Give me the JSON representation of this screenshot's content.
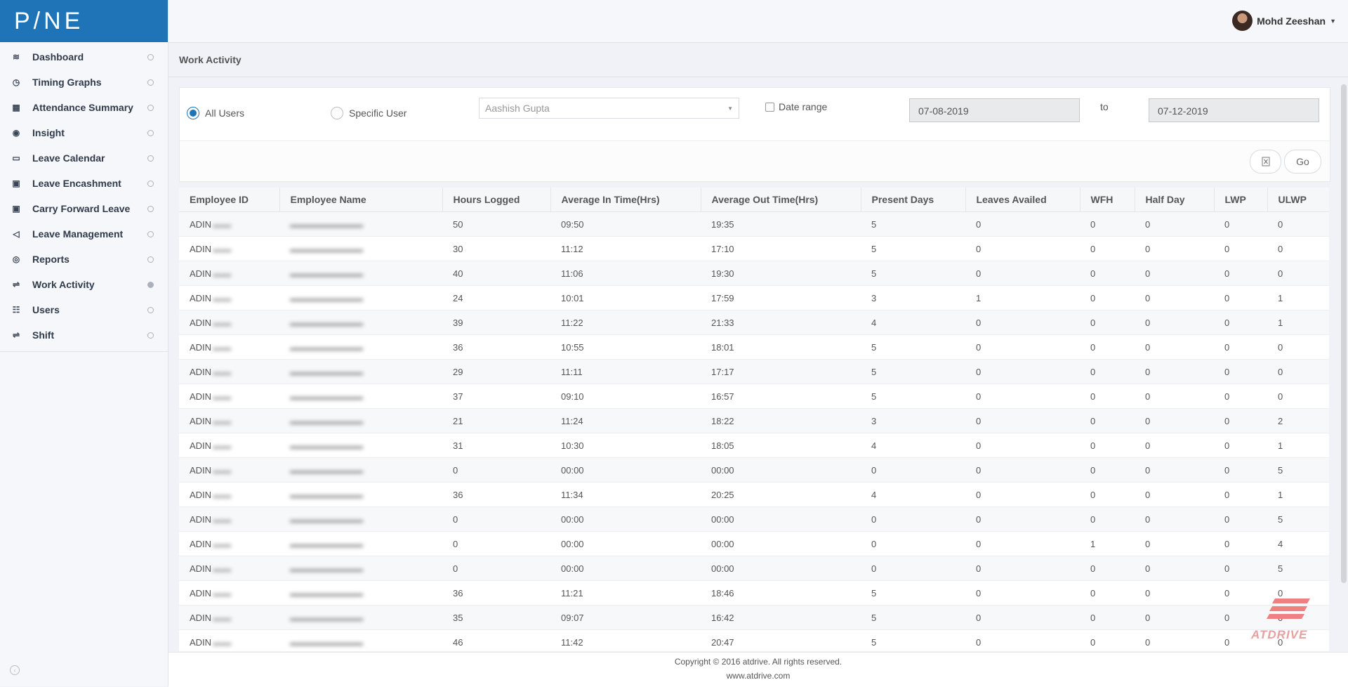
{
  "brand": {
    "logo_text": "P/NE"
  },
  "user": {
    "name": "Mohd Zeeshan"
  },
  "sidebar": {
    "items": [
      {
        "label": "Dashboard",
        "icon": "layers-icon",
        "glyph": "≋",
        "active": false
      },
      {
        "label": "Timing Graphs",
        "icon": "clock-icon",
        "glyph": "◷",
        "active": false
      },
      {
        "label": "Attendance Summary",
        "icon": "calendar-grid-icon",
        "glyph": "▦",
        "active": false
      },
      {
        "label": "Insight",
        "icon": "eye-icon",
        "glyph": "◉",
        "active": false
      },
      {
        "label": "Leave Calendar",
        "icon": "calendar-icon",
        "glyph": "▭",
        "active": false
      },
      {
        "label": "Leave Encashment",
        "icon": "money-icon",
        "glyph": "▣",
        "active": false
      },
      {
        "label": "Carry Forward Leave",
        "icon": "money-icon",
        "glyph": "▣",
        "active": false
      },
      {
        "label": "Leave Management",
        "icon": "paper-plane-icon",
        "glyph": "◁",
        "active": false
      },
      {
        "label": "Reports",
        "icon": "reports-icon",
        "glyph": "◎",
        "active": false
      },
      {
        "label": "Work Activity",
        "icon": "sliders-icon",
        "glyph": "⇌",
        "active": true
      },
      {
        "label": "Users",
        "icon": "users-icon",
        "glyph": "☷",
        "active": false
      },
      {
        "label": "Shift",
        "icon": "sliders-icon",
        "glyph": "⇌",
        "active": false
      }
    ]
  },
  "page": {
    "title": "Work Activity"
  },
  "filters": {
    "all_users_label": "All Users",
    "specific_user_label": "Specific User",
    "selected_scope": "All Users",
    "user_select_value": "Aashish Gupta",
    "date_range_label": "Date range",
    "date_range_checked": false,
    "from_date": "07-08-2019",
    "to_label": "to",
    "to_date": "07-12-2019",
    "export_icon": "excel-icon",
    "go_label": "Go"
  },
  "table": {
    "headers": [
      "Employee ID",
      "Employee Name",
      "Hours Logged",
      "Average In Time(Hrs)",
      "Average Out Time(Hrs)",
      "Present Days",
      "Leaves Availed",
      "WFH",
      "Half Day",
      "LWP",
      "ULWP"
    ],
    "rows": [
      [
        "ADIN",
        "",
        "50",
        "09:50",
        "19:35",
        "5",
        "0",
        "0",
        "0",
        "0",
        "0"
      ],
      [
        "ADIN",
        "",
        "30",
        "11:12",
        "17:10",
        "5",
        "0",
        "0",
        "0",
        "0",
        "0"
      ],
      [
        "ADIN",
        "",
        "40",
        "11:06",
        "19:30",
        "5",
        "0",
        "0",
        "0",
        "0",
        "0"
      ],
      [
        "ADIN",
        "",
        "24",
        "10:01",
        "17:59",
        "3",
        "1",
        "0",
        "0",
        "0",
        "1"
      ],
      [
        "ADIN",
        "",
        "39",
        "11:22",
        "21:33",
        "4",
        "0",
        "0",
        "0",
        "0",
        "1"
      ],
      [
        "ADIN",
        "",
        "36",
        "10:55",
        "18:01",
        "5",
        "0",
        "0",
        "0",
        "0",
        "0"
      ],
      [
        "ADIN",
        "",
        "29",
        "11:11",
        "17:17",
        "5",
        "0",
        "0",
        "0",
        "0",
        "0"
      ],
      [
        "ADIN",
        "",
        "37",
        "09:10",
        "16:57",
        "5",
        "0",
        "0",
        "0",
        "0",
        "0"
      ],
      [
        "ADIN",
        "",
        "21",
        "11:24",
        "18:22",
        "3",
        "0",
        "0",
        "0",
        "0",
        "2"
      ],
      [
        "ADIN",
        "",
        "31",
        "10:30",
        "18:05",
        "4",
        "0",
        "0",
        "0",
        "0",
        "1"
      ],
      [
        "ADIN",
        "",
        "0",
        "00:00",
        "00:00",
        "0",
        "0",
        "0",
        "0",
        "0",
        "5"
      ],
      [
        "ADIN",
        "",
        "36",
        "11:34",
        "20:25",
        "4",
        "0",
        "0",
        "0",
        "0",
        "1"
      ],
      [
        "ADIN",
        "",
        "0",
        "00:00",
        "00:00",
        "0",
        "0",
        "0",
        "0",
        "0",
        "5"
      ],
      [
        "ADIN",
        "",
        "0",
        "00:00",
        "00:00",
        "0",
        "0",
        "1",
        "0",
        "0",
        "4"
      ],
      [
        "ADIN",
        "",
        "0",
        "00:00",
        "00:00",
        "0",
        "0",
        "0",
        "0",
        "0",
        "5"
      ],
      [
        "ADIN",
        "",
        "36",
        "11:21",
        "18:46",
        "5",
        "0",
        "0",
        "0",
        "0",
        "0"
      ],
      [
        "ADIN",
        "",
        "35",
        "09:07",
        "16:42",
        "5",
        "0",
        "0",
        "0",
        "0",
        "0"
      ],
      [
        "ADIN",
        "",
        "46",
        "11:42",
        "20:47",
        "5",
        "0",
        "0",
        "0",
        "0",
        "0"
      ]
    ]
  },
  "footer": {
    "copyright": "Copyright © 2016 atdrive. All rights reserved.",
    "site": "www.atdrive.com"
  },
  "watermark": {
    "text": "ATDRIVE"
  },
  "colors": {
    "brand": "#1f74b7",
    "radio_active": "#1f74b7",
    "watermark": "#f08080"
  }
}
